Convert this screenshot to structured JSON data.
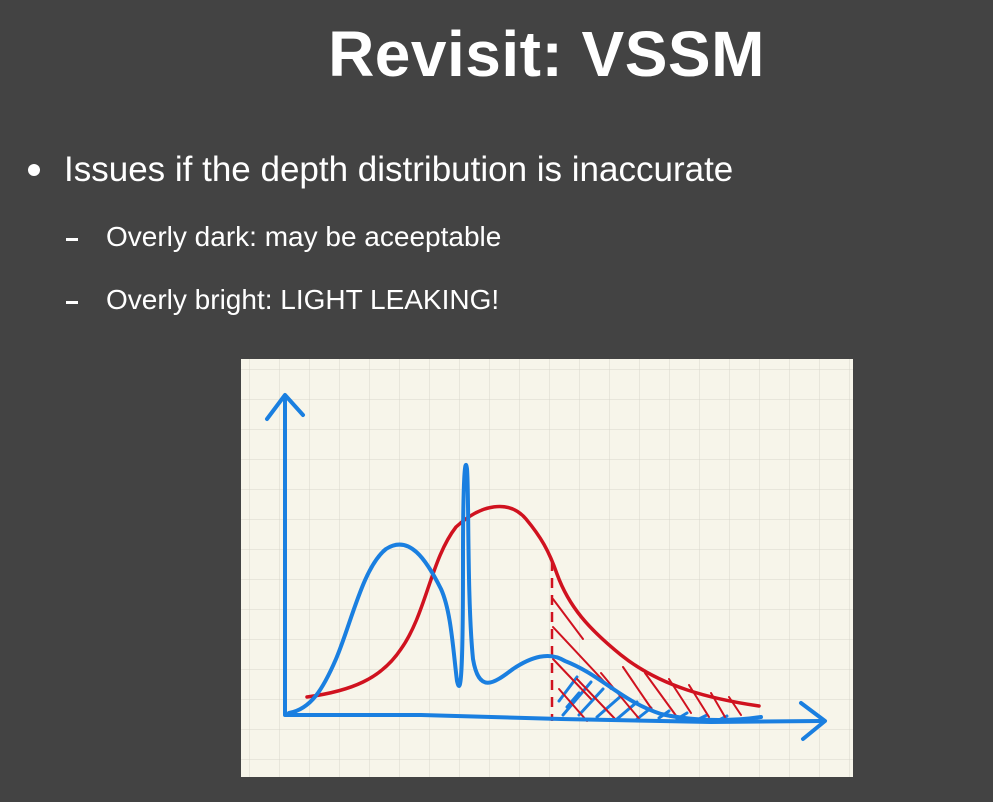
{
  "slide": {
    "title": "Revisit: VSSM",
    "bullet": "Issues if the depth distribution is inaccurate",
    "sub_bullets": [
      "Overly dark: may be aceeptable",
      "Overly bright: LIGHT LEAKING!"
    ]
  },
  "sketch": {
    "background_color": "#f7f5ea",
    "grid_color": "#d9d7cc",
    "blue_color": "#1a7fe0",
    "red_color": "#d0121f"
  }
}
